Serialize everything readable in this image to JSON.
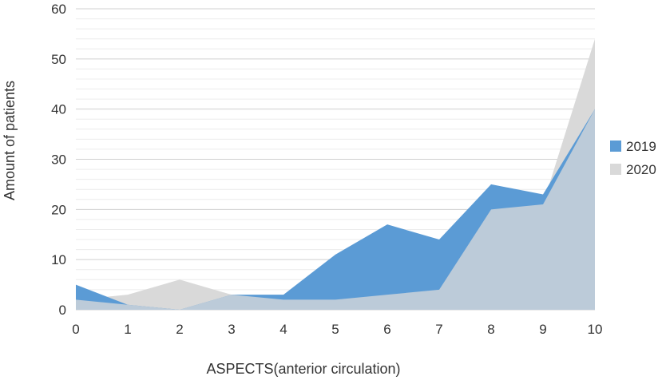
{
  "chart_data": {
    "type": "area",
    "title": "",
    "xlabel": "ASPECTS(anterior circulation)",
    "ylabel": "Amount of patients",
    "x": [
      0,
      1,
      2,
      3,
      4,
      5,
      6,
      7,
      8,
      9,
      10
    ],
    "x_tick_labels": [
      "0",
      "1",
      "2",
      "3",
      "4",
      "5",
      "6",
      "7",
      "8",
      "9",
      "10"
    ],
    "y_tick_labels": [
      "0",
      "10",
      "20",
      "30",
      "40",
      "50",
      "60"
    ],
    "ylim": [
      0,
      60
    ],
    "grid": true,
    "legend_position": "right",
    "series": [
      {
        "name": "2019",
        "values": [
          5,
          1,
          0,
          3,
          3,
          11,
          17,
          14,
          25,
          23,
          40
        ],
        "color": "#5b9bd5"
      },
      {
        "name": "2020",
        "values": [
          2,
          3,
          6,
          3,
          2,
          2,
          3,
          4,
          20,
          21,
          54
        ],
        "color": "#d9d9d9"
      }
    ],
    "overlap_color": "#bccbd9"
  }
}
